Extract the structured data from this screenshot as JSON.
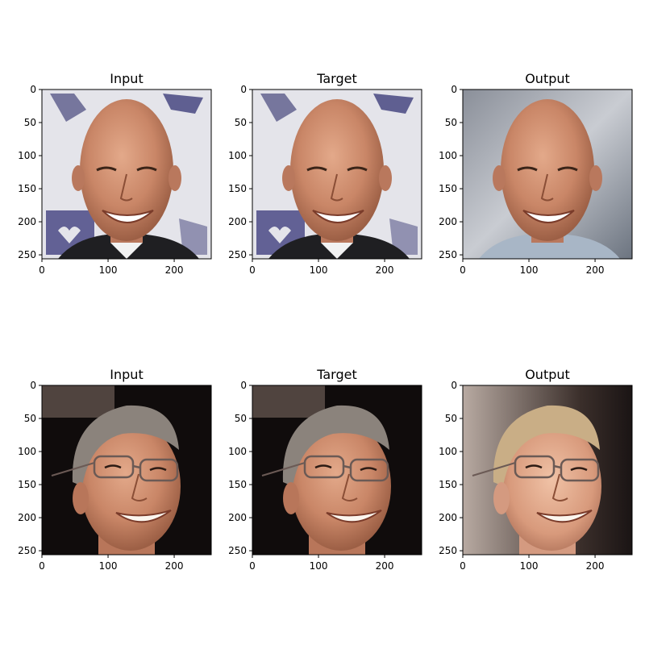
{
  "chart_data": [
    {
      "type": "image",
      "title": "Input",
      "xlim": [
        0,
        256
      ],
      "ylim": [
        256,
        0
      ],
      "xticks": [
        0,
        100,
        200
      ],
      "yticks": [
        0,
        50,
        100,
        150,
        200,
        250
      ],
      "image": {
        "subject": "smiling bald man",
        "background": "white with purple logos",
        "shirt": "dark jacket, white collar"
      }
    },
    {
      "type": "image",
      "title": "Target",
      "xlim": [
        0,
        256
      ],
      "ylim": [
        256,
        0
      ],
      "xticks": [
        0,
        100,
        200
      ],
      "yticks": [
        0,
        50,
        100,
        150,
        200,
        250
      ],
      "image": {
        "subject": "smiling bald man",
        "background": "white with purple logos",
        "shirt": "dark jacket, white collar"
      }
    },
    {
      "type": "image",
      "title": "Output",
      "xlim": [
        0,
        256
      ],
      "ylim": [
        256,
        0
      ],
      "xticks": [
        0,
        100,
        200
      ],
      "yticks": [
        0,
        50,
        100,
        150,
        200,
        250
      ],
      "image": {
        "subject": "smiling bald man",
        "background": "blurred grey",
        "shirt": "light blue"
      }
    },
    {
      "type": "image",
      "title": "Input",
      "xlim": [
        0,
        256
      ],
      "ylim": [
        256,
        0
      ],
      "xticks": [
        0,
        100,
        200
      ],
      "yticks": [
        0,
        50,
        100,
        150,
        200,
        250
      ],
      "image": {
        "subject": "smiling man with glasses and grey hair",
        "background": "dark",
        "shirt": "none visible"
      }
    },
    {
      "type": "image",
      "title": "Target",
      "xlim": [
        0,
        256
      ],
      "ylim": [
        256,
        0
      ],
      "xticks": [
        0,
        100,
        200
      ],
      "yticks": [
        0,
        50,
        100,
        150,
        200,
        250
      ],
      "image": {
        "subject": "smiling man with glasses and grey hair",
        "background": "dark",
        "shirt": "none visible"
      }
    },
    {
      "type": "image",
      "title": "Output",
      "xlim": [
        0,
        256
      ],
      "ylim": [
        256,
        0
      ],
      "xticks": [
        0,
        100,
        200
      ],
      "yticks": [
        0,
        50,
        100,
        150,
        200,
        250
      ],
      "image": {
        "subject": "smiling man with glasses and blond hair",
        "background": "light blurred",
        "shirt": "none visible"
      }
    }
  ]
}
